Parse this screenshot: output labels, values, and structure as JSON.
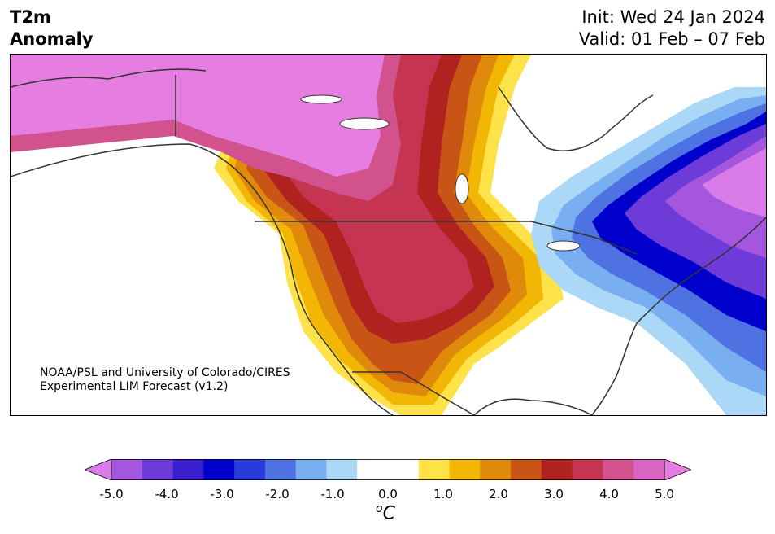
{
  "header": {
    "title_line1": "T2m",
    "title_line2": "Anomaly",
    "init": "Init: Wed 24 Jan 2024",
    "valid": "Valid: 01 Feb – 07 Feb"
  },
  "credit": {
    "line1": "NOAA/PSL and University of Colorado/CIRES",
    "line2": "Experimental LIM Forecast (v1.2)"
  },
  "colorbar": {
    "colors": [
      "#d97be8",
      "#a456df",
      "#6d3bd8",
      "#3a1fd1",
      "#0000cc",
      "#2a3bdb",
      "#4f72e3",
      "#79aef0",
      "#abd8f6",
      "#ffffff",
      "#ffffff",
      "#fde24a",
      "#f2b705",
      "#e08a0b",
      "#c85516",
      "#b0221f",
      "#c53450",
      "#d1528d",
      "#d866c2",
      "#e67de0"
    ],
    "ticks": [
      "-5.0",
      "-4.0",
      "-3.0",
      "-2.0",
      "-1.0",
      "0.0",
      "1.0",
      "2.0",
      "3.0",
      "4.0",
      "5.0"
    ],
    "unit_base": "C",
    "unit_sup": "o"
  },
  "map": {
    "warm_colors": [
      "#fde24a",
      "#f2b705",
      "#e08a0b",
      "#c85516",
      "#b0221f",
      "#c53450",
      "#d1528d",
      "#e67de0"
    ],
    "cold_colors": [
      "#abd8f6",
      "#79aef0",
      "#4f72e3",
      "#0000cc",
      "#6d3bd8",
      "#a456df",
      "#d97be8"
    ]
  }
}
